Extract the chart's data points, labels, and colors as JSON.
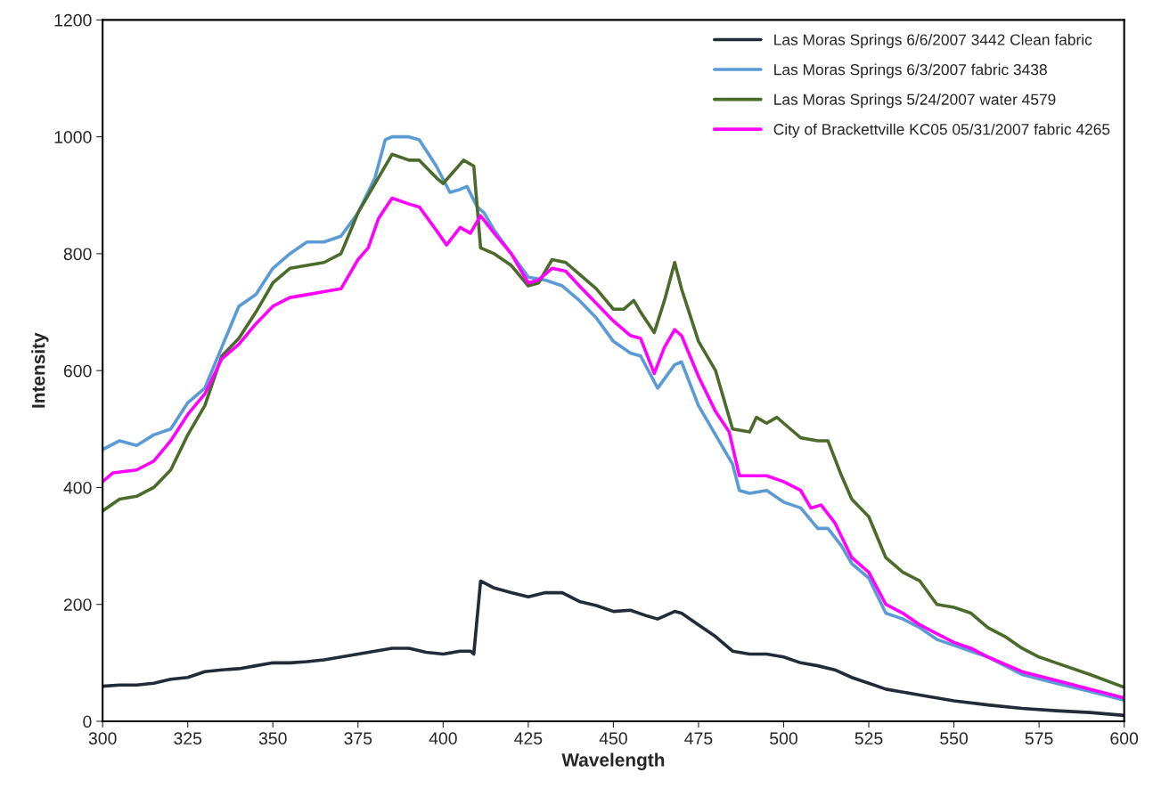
{
  "chart_data": {
    "type": "line",
    "xlabel": "Wavelength",
    "ylabel": "Intensity",
    "xlim": [
      300,
      600
    ],
    "ylim": [
      0,
      1200
    ],
    "xticks": [
      300,
      325,
      350,
      375,
      400,
      425,
      450,
      475,
      500,
      525,
      550,
      575,
      600
    ],
    "yticks": [
      0,
      200,
      400,
      600,
      800,
      1000,
      1200
    ],
    "grid": false,
    "legend": "top right",
    "marker": "none",
    "line_style": "solid",
    "series": [
      {
        "name": "Las Moras Springs 6/6/2007 3442 Clean fabric",
        "color": "#222b38",
        "x": [
          300,
          305,
          310,
          315,
          320,
          325,
          330,
          335,
          340,
          345,
          350,
          355,
          360,
          365,
          370,
          375,
          380,
          385,
          390,
          395,
          400,
          405,
          408,
          409,
          411,
          415,
          420,
          425,
          430,
          435,
          440,
          445,
          450,
          455,
          460,
          463,
          468,
          470,
          475,
          480,
          485,
          490,
          495,
          500,
          505,
          510,
          515,
          520,
          525,
          530,
          540,
          550,
          560,
          570,
          580,
          590,
          600
        ],
        "values": [
          60,
          62,
          62,
          65,
          72,
          75,
          85,
          88,
          90,
          95,
          100,
          100,
          102,
          105,
          110,
          115,
          120,
          125,
          125,
          118,
          115,
          120,
          120,
          115,
          240,
          228,
          220,
          213,
          220,
          220,
          205,
          198,
          188,
          190,
          180,
          175,
          188,
          185,
          165,
          145,
          120,
          115,
          115,
          110,
          100,
          95,
          88,
          75,
          65,
          55,
          45,
          35,
          28,
          22,
          18,
          15,
          10
        ]
      },
      {
        "name": "Las Moras Springs 6/3/2007 fabric 3438",
        "color": "#5b9bd5",
        "x": [
          300,
          305,
          310,
          315,
          320,
          325,
          330,
          335,
          340,
          345,
          350,
          355,
          360,
          365,
          370,
          375,
          380,
          383,
          385,
          390,
          393,
          398,
          402,
          405,
          407,
          410,
          412,
          415,
          420,
          425,
          430,
          435,
          440,
          445,
          450,
          455,
          458,
          463,
          468,
          470,
          475,
          480,
          485,
          487,
          490,
          495,
          500,
          505,
          510,
          513,
          517,
          520,
          525,
          530,
          535,
          540,
          545,
          550,
          555,
          560,
          570,
          580,
          590,
          600
        ],
        "values": [
          465,
          480,
          472,
          490,
          500,
          545,
          570,
          640,
          710,
          730,
          775,
          800,
          820,
          820,
          830,
          870,
          930,
          995,
          1000,
          1000,
          995,
          950,
          905,
          910,
          915,
          880,
          870,
          840,
          800,
          760,
          755,
          745,
          720,
          690,
          650,
          630,
          625,
          570,
          610,
          615,
          540,
          490,
          440,
          395,
          390,
          395,
          375,
          365,
          330,
          330,
          300,
          270,
          245,
          185,
          175,
          160,
          140,
          130,
          120,
          110,
          80,
          65,
          51,
          36
        ]
      },
      {
        "name": "Las Moras Springs 5/24/2007 water 4579",
        "color": "#4b6b2a",
        "x": [
          300,
          305,
          310,
          315,
          320,
          325,
          330,
          335,
          340,
          345,
          350,
          355,
          360,
          365,
          370,
          375,
          380,
          385,
          390,
          393,
          398,
          400,
          403,
          406,
          409,
          411,
          415,
          420,
          425,
          428,
          432,
          436,
          440,
          445,
          450,
          453,
          456,
          458,
          462,
          465,
          468,
          470,
          475,
          480,
          485,
          490,
          492,
          495,
          498,
          500,
          505,
          510,
          513,
          517,
          520,
          525,
          530,
          535,
          540,
          545,
          550,
          555,
          560,
          565,
          570,
          575,
          580,
          590,
          600
        ],
        "values": [
          360,
          380,
          385,
          400,
          430,
          490,
          540,
          625,
          655,
          700,
          750,
          775,
          780,
          785,
          800,
          870,
          920,
          970,
          960,
          960,
          930,
          920,
          940,
          960,
          950,
          810,
          800,
          780,
          745,
          750,
          790,
          785,
          765,
          740,
          705,
          705,
          720,
          700,
          665,
          720,
          785,
          740,
          650,
          600,
          500,
          495,
          520,
          510,
          520,
          510,
          485,
          480,
          480,
          420,
          380,
          350,
          280,
          255,
          240,
          200,
          195,
          185,
          160,
          145,
          125,
          110,
          100,
          80,
          58
        ]
      },
      {
        "name": "City of Brackettville KC05 05/31/2007 fabric 4265",
        "color": "#ff00ff",
        "x": [
          300,
          303,
          310,
          315,
          320,
          325,
          330,
          335,
          340,
          345,
          350,
          355,
          360,
          365,
          370,
          375,
          378,
          381,
          385,
          390,
          393,
          398,
          401,
          405,
          408,
          411,
          415,
          420,
          425,
          428,
          432,
          436,
          440,
          445,
          450,
          455,
          458,
          462,
          465,
          468,
          470,
          475,
          480,
          484,
          487,
          490,
          495,
          500,
          505,
          508,
          511,
          515,
          520,
          525,
          530,
          535,
          540,
          545,
          550,
          555,
          560,
          570,
          580,
          590,
          600
        ],
        "values": [
          410,
          425,
          430,
          445,
          480,
          525,
          560,
          620,
          645,
          680,
          710,
          725,
          730,
          735,
          740,
          790,
          810,
          860,
          895,
          885,
          880,
          840,
          815,
          845,
          835,
          865,
          835,
          800,
          750,
          755,
          775,
          770,
          745,
          715,
          685,
          660,
          655,
          595,
          640,
          670,
          660,
          590,
          530,
          495,
          420,
          420,
          420,
          410,
          395,
          365,
          370,
          340,
          280,
          255,
          200,
          185,
          165,
          150,
          135,
          125,
          110,
          85,
          70,
          55,
          40
        ]
      }
    ]
  }
}
